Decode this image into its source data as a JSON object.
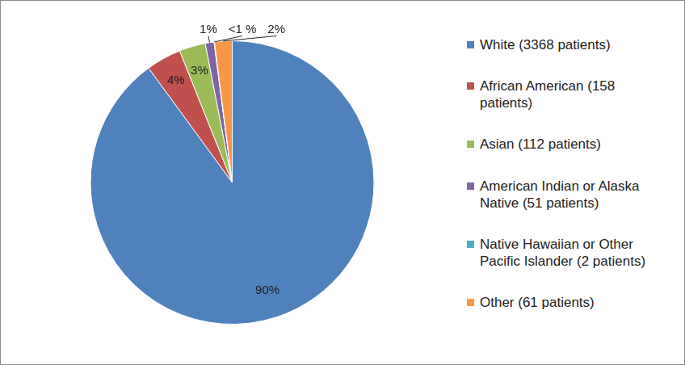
{
  "chart_data": {
    "type": "pie",
    "categories": [
      "White (3368 patients)",
      "African American (158 patients)",
      "Asian (112 patients)",
      "American Indian or Alaska Native (51 patients)",
      "Native Hawaiian or Other Pacific Islander (2 patients)",
      "Other (61 patients)"
    ],
    "values": [
      90,
      4,
      3,
      1,
      0.05,
      2
    ],
    "value_labels": [
      "90%",
      "4%",
      "3%",
      "1%",
      "<1 %",
      "2%"
    ],
    "colors": [
      "#4f81bd",
      "#c0504d",
      "#9bbb59",
      "#8064a2",
      "#4bacc6",
      "#f79646"
    ],
    "data_labels": true,
    "legend": "right"
  }
}
